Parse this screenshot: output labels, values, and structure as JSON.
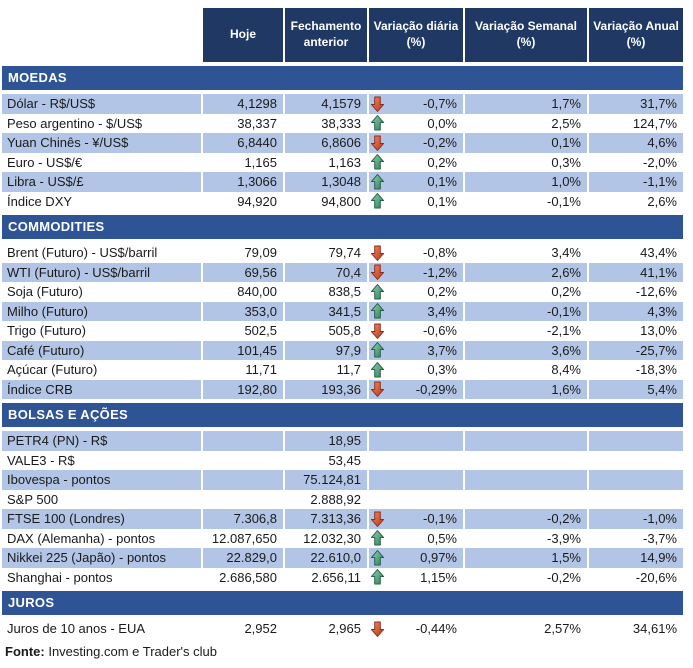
{
  "chart_data": {
    "type": "table",
    "columns": [
      "Hoje",
      "Fechamento anterior",
      "Variação diária (%)",
      "Variação Semanal (%)",
      "Variação Anual (%)"
    ],
    "sections": [
      {
        "title": "MOEDAS",
        "first_row_shaded": true,
        "rows": [
          {
            "label": "Dólar - R$/US$",
            "hoje": "4,1298",
            "fechamento": "4,1579",
            "arrow": "down",
            "diaria": "-0,7%",
            "semanal": "1,7%",
            "anual": "31,7%"
          },
          {
            "label": "Peso argentino - $/US$",
            "hoje": "38,337",
            "fechamento": "38,333",
            "arrow": "up",
            "diaria": "0,0%",
            "semanal": "2,5%",
            "anual": "124,7%"
          },
          {
            "label": "Yuan Chinês - ¥/US$",
            "hoje": "6,8440",
            "fechamento": "6,8606",
            "arrow": "down",
            "diaria": "-0,2%",
            "semanal": "0,1%",
            "anual": "4,6%"
          },
          {
            "label": "Euro - US$/€",
            "hoje": "1,165",
            "fechamento": "1,163",
            "arrow": "up",
            "diaria": "0,2%",
            "semanal": "0,3%",
            "anual": "-2,0%"
          },
          {
            "label": "Libra - US$/£",
            "hoje": "1,3066",
            "fechamento": "1,3048",
            "arrow": "up",
            "diaria": "0,1%",
            "semanal": "1,0%",
            "anual": "-1,1%"
          },
          {
            "label": "Índice DXY",
            "hoje": "94,920",
            "fechamento": "94,800",
            "arrow": "up",
            "diaria": "0,1%",
            "semanal": "-0,1%",
            "anual": "2,6%"
          }
        ]
      },
      {
        "title": "COMMODITIES",
        "first_row_shaded": false,
        "rows": [
          {
            "label": "Brent (Futuro) - US$/barril",
            "hoje": "79,09",
            "fechamento": "79,74",
            "arrow": "down",
            "diaria": "-0,8%",
            "semanal": "3,4%",
            "anual": "43,4%"
          },
          {
            "label": "WTI (Futuro) - US$/barril",
            "hoje": "69,56",
            "fechamento": "70,4",
            "arrow": "down",
            "diaria": "-1,2%",
            "semanal": "2,6%",
            "anual": "41,1%"
          },
          {
            "label": "Soja (Futuro)",
            "hoje": "840,00",
            "fechamento": "838,5",
            "arrow": "up",
            "diaria": "0,2%",
            "semanal": "0,2%",
            "anual": "-12,6%"
          },
          {
            "label": "Milho (Futuro)",
            "hoje": "353,0",
            "fechamento": "341,5",
            "arrow": "up",
            "diaria": "3,4%",
            "semanal": "-0,1%",
            "anual": "4,3%"
          },
          {
            "label": "Trigo (Futuro)",
            "hoje": "502,5",
            "fechamento": "505,8",
            "arrow": "down",
            "diaria": "-0,6%",
            "semanal": "-2,1%",
            "anual": "13,0%"
          },
          {
            "label": "Café (Futuro)",
            "hoje": "101,45",
            "fechamento": "97,9",
            "arrow": "up",
            "diaria": "3,7%",
            "semanal": "3,6%",
            "anual": "-25,7%"
          },
          {
            "label": "Açúcar (Futuro)",
            "hoje": "11,71",
            "fechamento": "11,7",
            "arrow": "up",
            "diaria": "0,3%",
            "semanal": "8,4%",
            "anual": "-18,3%"
          },
          {
            "label": "Índice CRB",
            "hoje": "192,80",
            "fechamento": "193,36",
            "arrow": "down",
            "diaria": "-0,29%",
            "semanal": "1,6%",
            "anual": "5,4%"
          }
        ]
      },
      {
        "title": "BOLSAS E AÇÕES",
        "first_row_shaded": true,
        "rows": [
          {
            "label": "PETR4 (PN) - R$",
            "hoje": "",
            "fechamento": "18,95",
            "arrow": null,
            "diaria": "",
            "semanal": "",
            "anual": ""
          },
          {
            "label": "VALE3 - R$",
            "hoje": "",
            "fechamento": "53,45",
            "arrow": null,
            "diaria": "",
            "semanal": "",
            "anual": ""
          },
          {
            "label": "Ibovespa - pontos",
            "hoje": "",
            "fechamento": "75.124,81",
            "arrow": null,
            "diaria": "",
            "semanal": "",
            "anual": ""
          },
          {
            "label": "S&P 500",
            "hoje": "",
            "fechamento": "2.888,92",
            "arrow": null,
            "diaria": "",
            "semanal": "",
            "anual": ""
          },
          {
            "label": "FTSE 100 (Londres)",
            "hoje": "7.306,8",
            "fechamento": "7.313,36",
            "arrow": "down",
            "diaria": "-0,1%",
            "semanal": "-0,2%",
            "anual": "-1,0%"
          },
          {
            "label": "DAX (Alemanha) - pontos",
            "hoje": "12.087,650",
            "fechamento": "12.032,30",
            "arrow": "up",
            "diaria": "0,5%",
            "semanal": "-3,9%",
            "anual": "-3,7%"
          },
          {
            "label": "Nikkei 225 (Japão) - pontos",
            "hoje": "22.829,0",
            "fechamento": "22.610,0",
            "arrow": "up",
            "diaria": "0,97%",
            "semanal": "1,5%",
            "anual": "14,9%"
          },
          {
            "label": "Shanghai - pontos",
            "hoje": "2.686,580",
            "fechamento": "2.656,11",
            "arrow": "up",
            "diaria": "1,15%",
            "semanal": "-0,2%",
            "anual": "-20,6%"
          }
        ]
      },
      {
        "title": "JUROS",
        "first_row_shaded": false,
        "rows": [
          {
            "label": "Juros de 10 anos - EUA",
            "hoje": "2,952",
            "fechamento": "2,965",
            "arrow": "down",
            "diaria": "-0,44%",
            "semanal": "2,57%",
            "anual": "34,61%"
          }
        ]
      }
    ]
  },
  "footer": {
    "source_label": "Fonte:",
    "source_text": " Investing.com e Trader's club"
  },
  "colors": {
    "header_bg": "#1F3864",
    "section_bg": "#2F5496",
    "shaded_row_bg": "#B2C5E6",
    "up_arrow": "#3E8E6E",
    "down_arrow": "#C0482F"
  }
}
